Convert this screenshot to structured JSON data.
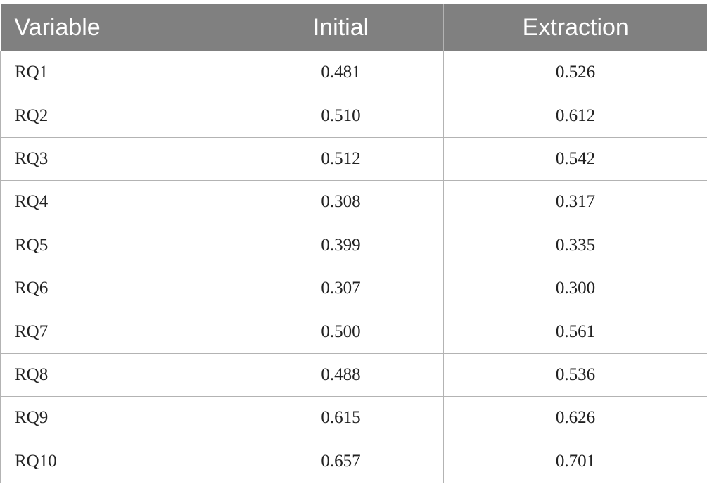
{
  "table": {
    "headers": [
      "Variable",
      "Initial",
      "Extraction"
    ],
    "rows": [
      {
        "variable": "RQ1",
        "initial": "0.481",
        "extraction": "0.526"
      },
      {
        "variable": "RQ2",
        "initial": "0.510",
        "extraction": "0.612"
      },
      {
        "variable": "RQ3",
        "initial": "0.512",
        "extraction": "0.542"
      },
      {
        "variable": "RQ4",
        "initial": "0.308",
        "extraction": "0.317"
      },
      {
        "variable": "RQ5",
        "initial": "0.399",
        "extraction": "0.335"
      },
      {
        "variable": "RQ6",
        "initial": "0.307",
        "extraction": "0.300"
      },
      {
        "variable": "RQ7",
        "initial": "0.500",
        "extraction": "0.561"
      },
      {
        "variable": "RQ8",
        "initial": "0.488",
        "extraction": "0.536"
      },
      {
        "variable": "RQ9",
        "initial": "0.615",
        "extraction": "0.626"
      },
      {
        "variable": "RQ10",
        "initial": "0.657",
        "extraction": "0.701"
      }
    ]
  },
  "colors": {
    "header_bg": "#808080",
    "header_text": "#ffffff",
    "grid": "#b3b3b3"
  }
}
